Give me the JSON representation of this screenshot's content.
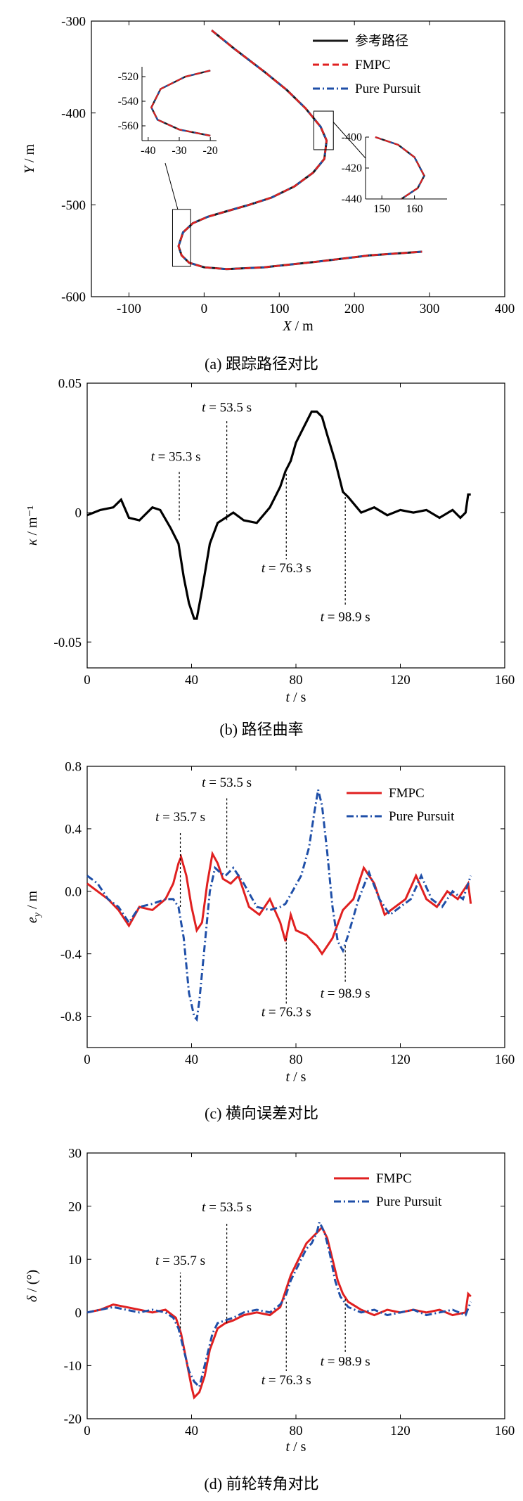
{
  "chart_data": [
    {
      "type": "line",
      "caption": "(a)  跟踪路径对比",
      "xlabel": "X / m",
      "ylabel": "Y / m",
      "xlim": [
        -150,
        400
      ],
      "ylim": [
        -600,
        -300
      ],
      "xticks": [
        "-100",
        "0",
        "100",
        "200",
        "300",
        "400"
      ],
      "yticks": [
        "-300",
        "-400",
        "-500",
        "-600"
      ],
      "legend_position": "top-right",
      "colors": {
        "ref": "#1a1a1a",
        "fmpc": "#e02020",
        "pp": "#1f4fa8"
      },
      "series": [
        {
          "name": "参考路径",
          "style": "solid"
        },
        {
          "name": "FMPC",
          "style": "dashed"
        },
        {
          "name": "Pure Pursuit",
          "style": "dashdot"
        }
      ],
      "path": {
        "x": [
          10,
          40,
          80,
          110,
          135,
          155,
          163,
          160,
          145,
          120,
          90,
          60,
          30,
          5,
          -15,
          -28,
          -34,
          -30,
          -20,
          0,
          30,
          80,
          150,
          220,
          290
        ],
        "y": [
          -310,
          -330,
          -355,
          -375,
          -395,
          -415,
          -430,
          -450,
          -465,
          -480,
          -492,
          -500,
          -507,
          -513,
          -520,
          -530,
          -545,
          -555,
          -563,
          -568,
          -570,
          -568,
          -562,
          -555,
          -551
        ]
      },
      "inset_left": {
        "xticks": [
          "-40",
          "-30",
          "-20"
        ],
        "yticks": [
          "-520",
          "-540",
          "-560"
        ],
        "xlim": [
          -42,
          -18
        ],
        "ylim": [
          -572,
          -512
        ]
      },
      "inset_right": {
        "xticks": [
          "150",
          "160"
        ],
        "yticks": [
          "-400",
          "-420",
          "-440"
        ],
        "xlim": [
          145,
          170
        ],
        "ylim": [
          -440,
          -400
        ]
      }
    },
    {
      "type": "line",
      "caption": "(b)  路径曲率",
      "xlabel": "t / s",
      "ylabel": "κ / m⁻¹",
      "xlim": [
        0,
        160
      ],
      "ylim": [
        -0.06,
        0.05
      ],
      "xticks": [
        "0",
        "40",
        "80",
        "120",
        "160"
      ],
      "yticks": [
        "0.05",
        "0",
        "-0.05"
      ],
      "annotations": [
        "t = 35.3 s",
        "t = 53.5 s",
        "t = 76.3 s",
        "t = 98.9 s"
      ],
      "series": [
        {
          "name": "",
          "x": [
            0,
            5,
            10,
            13,
            16,
            20,
            25,
            28,
            32,
            35,
            37,
            39,
            41,
            42,
            44,
            47,
            50,
            53,
            56,
            60,
            65,
            70,
            74,
            76,
            78,
            80,
            83,
            86,
            88,
            90,
            92,
            95,
            98,
            100,
            105,
            110,
            115,
            120,
            125,
            130,
            135,
            140,
            143,
            145,
            146,
            147
          ],
          "y": [
            -0.001,
            0.001,
            0.002,
            0.005,
            -0.002,
            -0.003,
            0.002,
            0.001,
            -0.006,
            -0.012,
            -0.025,
            -0.035,
            -0.041,
            -0.041,
            -0.03,
            -0.012,
            -0.004,
            -0.002,
            0.0,
            -0.003,
            -0.004,
            0.002,
            0.01,
            0.016,
            0.02,
            0.027,
            0.033,
            0.039,
            0.039,
            0.037,
            0.03,
            0.02,
            0.008,
            0.006,
            0.0,
            0.002,
            -0.001,
            0.001,
            0.0,
            0.001,
            -0.002,
            0.001,
            -0.002,
            0.0,
            0.007,
            0.007
          ]
        }
      ]
    },
    {
      "type": "line",
      "caption": "(c)  横向误差对比",
      "xlabel": "t / s",
      "ylabel": "e_y / m",
      "xlim": [
        0,
        160
      ],
      "ylim": [
        -1.0,
        0.8
      ],
      "xticks": [
        "0",
        "40",
        "80",
        "120",
        "160"
      ],
      "yticks": [
        "0.8",
        "0.4",
        "0.0",
        "-0.4",
        "-0.8"
      ],
      "annotations": [
        "t = 35.7 s",
        "t = 53.5 s",
        "t = 76.3 s",
        "t = 98.9 s"
      ],
      "legend_position": "top-right",
      "colors": {
        "fmpc": "#e02020",
        "pp": "#1f4fa8"
      },
      "series": [
        {
          "name": "FMPC",
          "x": [
            0,
            4,
            8,
            12,
            16,
            20,
            25,
            30,
            33,
            35,
            36,
            38,
            40,
            42,
            44,
            46,
            48,
            50,
            52,
            55,
            58,
            62,
            66,
            70,
            74,
            76,
            78,
            80,
            84,
            88,
            90,
            94,
            98,
            102,
            106,
            110,
            114,
            118,
            122,
            126,
            130,
            134,
            138,
            142,
            146,
            147
          ],
          "y": [
            0.05,
            0.0,
            -0.05,
            -0.12,
            -0.22,
            -0.1,
            -0.12,
            -0.05,
            0.05,
            0.18,
            0.22,
            0.1,
            -0.1,
            -0.25,
            -0.2,
            0.05,
            0.24,
            0.18,
            0.08,
            0.05,
            0.1,
            -0.1,
            -0.15,
            -0.05,
            -0.2,
            -0.32,
            -0.15,
            -0.25,
            -0.28,
            -0.35,
            -0.4,
            -0.3,
            -0.12,
            -0.05,
            0.15,
            0.05,
            -0.15,
            -0.1,
            -0.05,
            0.1,
            -0.05,
            -0.1,
            0.0,
            -0.05,
            0.05,
            -0.08
          ]
        },
        {
          "name": "Pure Pursuit",
          "x": [
            0,
            4,
            8,
            12,
            16,
            20,
            25,
            30,
            33,
            35,
            37,
            39,
            41,
            42,
            43,
            45,
            47,
            49,
            51,
            53,
            56,
            60,
            65,
            70,
            74,
            76,
            78,
            82,
            85,
            87,
            88.5,
            90,
            92,
            94,
            96,
            98,
            100,
            104,
            108,
            112,
            116,
            120,
            124,
            128,
            132,
            136,
            140,
            144,
            147
          ],
          "y": [
            0.1,
            0.05,
            -0.05,
            -0.1,
            -0.2,
            -0.1,
            -0.08,
            -0.05,
            -0.05,
            -0.1,
            -0.3,
            -0.65,
            -0.8,
            -0.82,
            -0.7,
            -0.35,
            0.0,
            0.15,
            0.12,
            0.1,
            0.15,
            0.05,
            -0.1,
            -0.12,
            -0.1,
            -0.08,
            -0.02,
            0.1,
            0.28,
            0.5,
            0.65,
            0.55,
            0.25,
            -0.1,
            -0.32,
            -0.38,
            -0.28,
            -0.05,
            0.12,
            -0.05,
            -0.15,
            -0.1,
            -0.05,
            0.1,
            -0.05,
            -0.1,
            0.0,
            -0.05,
            0.1
          ]
        }
      ]
    },
    {
      "type": "line",
      "caption": "(d)  前轮转角对比",
      "xlabel": "t / s",
      "ylabel": "δ / (°)",
      "xlim": [
        0,
        160
      ],
      "ylim": [
        -20,
        30
      ],
      "xticks": [
        "0",
        "40",
        "80",
        "120",
        "160"
      ],
      "yticks": [
        "30",
        "20",
        "10",
        "0",
        "-10",
        "-20"
      ],
      "annotations": [
        "t = 35.7 s",
        "t = 53.5 s",
        "t = 76.3 s",
        "t = 98.9 s"
      ],
      "legend_position": "top-right",
      "colors": {
        "fmpc": "#e02020",
        "pp": "#1f4fa8"
      },
      "series": [
        {
          "name": "FMPC",
          "x": [
            0,
            5,
            10,
            15,
            20,
            25,
            30,
            34,
            36,
            38,
            40,
            41,
            43,
            45,
            47,
            50,
            53,
            56,
            60,
            65,
            70,
            74,
            76,
            78,
            80,
            82,
            84,
            86,
            88,
            90,
            92,
            94,
            96,
            98,
            100,
            105,
            110,
            115,
            120,
            125,
            130,
            135,
            140,
            145,
            146,
            147
          ],
          "y": [
            0,
            0.5,
            1.5,
            1.0,
            0.5,
            0,
            0.5,
            -1,
            -4,
            -9,
            -14,
            -16,
            -15,
            -12,
            -7,
            -3,
            -2,
            -1.5,
            -0.5,
            0,
            -0.5,
            1,
            4,
            7,
            9,
            11,
            13,
            14,
            15,
            16,
            14,
            10,
            6,
            3.5,
            2,
            0.5,
            -0.5,
            0.5,
            0,
            0.5,
            0,
            0.5,
            -0.5,
            0,
            3.5,
            3
          ]
        },
        {
          "name": "Pure Pursuit",
          "x": [
            0,
            5,
            10,
            15,
            20,
            25,
            30,
            33,
            35,
            37,
            39,
            41,
            43,
            44,
            46,
            48,
            50,
            53,
            56,
            60,
            65,
            70,
            74,
            76,
            78,
            80,
            82,
            84,
            86,
            88,
            89,
            91,
            93,
            95,
            97,
            100,
            105,
            110,
            115,
            120,
            125,
            130,
            135,
            140,
            145,
            147
          ],
          "y": [
            0,
            0.5,
            1.0,
            0.5,
            0,
            0.5,
            0,
            -1,
            -3,
            -7,
            -11,
            -13,
            -14,
            -12,
            -8,
            -4,
            -2,
            -1.5,
            -1,
            0,
            0.5,
            0,
            1.5,
            3,
            6,
            8,
            10,
            12,
            13,
            15,
            17,
            15,
            11,
            6,
            3,
            1,
            0,
            0.5,
            -0.5,
            0,
            0.5,
            -0.5,
            0,
            0.5,
            -0.5,
            2
          ]
        }
      ]
    }
  ]
}
